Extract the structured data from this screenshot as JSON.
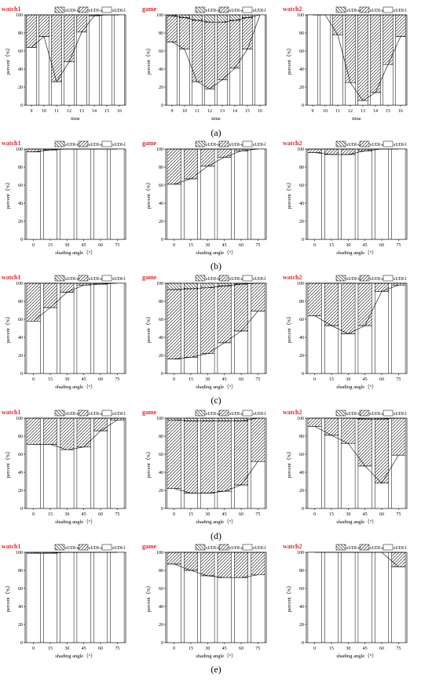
{
  "figure": {
    "row_labels": [
      "(a)",
      "(b)",
      "(c)",
      "(d)",
      "(e)"
    ],
    "legend_labels": [
      "sUDI-u",
      "sUDI-a",
      "sUDI-l"
    ],
    "ylabel": "percent（%）",
    "ylim": [
      0,
      100
    ],
    "yticks": [
      "0",
      "20",
      "40",
      "60",
      "80",
      "100"
    ],
    "title_color": "#e8262b"
  },
  "chart_data": [
    {
      "type": "bar",
      "row": 0,
      "col": 0,
      "title": "watch1",
      "xlabel": "time",
      "categories": [
        "9",
        "10",
        "11",
        "12",
        "13",
        "14",
        "15",
        "16"
      ],
      "series": [
        {
          "name": "sUDI-u",
          "values": [
            0,
            0,
            0,
            0,
            0,
            0,
            0,
            0
          ]
        },
        {
          "name": "sUDI-a",
          "values": [
            36,
            24,
            74,
            52,
            19,
            1,
            0,
            0
          ]
        },
        {
          "name": "sUDI-l",
          "values": [
            64,
            76,
            26,
            48,
            81,
            99,
            100,
            100
          ]
        }
      ]
    },
    {
      "type": "bar",
      "row": 0,
      "col": 1,
      "title": "game",
      "xlabel": "time",
      "categories": [
        "9",
        "10",
        "11",
        "12",
        "13",
        "14",
        "15",
        "16"
      ],
      "series": [
        {
          "name": "sUDI-u",
          "values": [
            1,
            3,
            6,
            8,
            8,
            6,
            3,
            0
          ]
        },
        {
          "name": "sUDI-a",
          "values": [
            29,
            35,
            68,
            74,
            64,
            53,
            35,
            0
          ]
        },
        {
          "name": "sUDI-l",
          "values": [
            70,
            62,
            26,
            18,
            28,
            41,
            62,
            100
          ]
        }
      ]
    },
    {
      "type": "bar",
      "row": 0,
      "col": 2,
      "title": "watch2",
      "xlabel": "time",
      "categories": [
        "9",
        "10",
        "11",
        "12",
        "13",
        "14",
        "15",
        "16"
      ],
      "series": [
        {
          "name": "sUDI-u",
          "values": [
            0,
            0,
            0,
            0,
            0,
            0,
            0,
            0
          ]
        },
        {
          "name": "sUDI-a",
          "values": [
            0,
            0,
            22,
            75,
            95,
            86,
            55,
            24
          ]
        },
        {
          "name": "sUDI-l",
          "values": [
            100,
            100,
            78,
            25,
            5,
            14,
            45,
            76
          ]
        }
      ]
    },
    {
      "type": "bar",
      "row": 1,
      "col": 0,
      "title": "watch1",
      "xlabel": "shading angle（°）",
      "categories": [
        "0",
        "15",
        "30",
        "45",
        "60",
        "75"
      ],
      "series": [
        {
          "name": "sUDI-u",
          "values": [
            0,
            0,
            0,
            0,
            0,
            0
          ]
        },
        {
          "name": "sUDI-a",
          "values": [
            3,
            1,
            0,
            0,
            0,
            0
          ]
        },
        {
          "name": "sUDI-l",
          "values": [
            97,
            99,
            100,
            100,
            100,
            100
          ]
        }
      ]
    },
    {
      "type": "bar",
      "row": 1,
      "col": 1,
      "title": "game",
      "xlabel": "shading angle（°）",
      "categories": [
        "0",
        "15",
        "30",
        "45",
        "60",
        "75"
      ],
      "series": [
        {
          "name": "sUDI-u",
          "values": [
            0,
            0,
            0,
            0,
            0,
            0
          ]
        },
        {
          "name": "sUDI-a",
          "values": [
            39,
            33,
            19,
            9,
            2,
            0
          ]
        },
        {
          "name": "sUDI-l",
          "values": [
            61,
            67,
            81,
            91,
            98,
            100
          ]
        }
      ]
    },
    {
      "type": "bar",
      "row": 1,
      "col": 2,
      "title": "watch2",
      "xlabel": "shading angle（°）",
      "categories": [
        "0",
        "15",
        "30",
        "45",
        "60",
        "75"
      ],
      "series": [
        {
          "name": "sUDI-u",
          "values": [
            0,
            0,
            0,
            0,
            0,
            0
          ]
        },
        {
          "name": "sUDI-a",
          "values": [
            4,
            6,
            6,
            2,
            0,
            0
          ]
        },
        {
          "name": "sUDI-l",
          "values": [
            96,
            94,
            94,
            98,
            100,
            100
          ]
        }
      ]
    },
    {
      "type": "bar",
      "row": 2,
      "col": 0,
      "title": "watch1",
      "xlabel": "shading angle（°）",
      "categories": [
        "0",
        "15",
        "30",
        "45",
        "60",
        "75"
      ],
      "series": [
        {
          "name": "sUDI-u",
          "values": [
            0,
            0,
            0,
            0,
            0,
            0
          ]
        },
        {
          "name": "sUDI-a",
          "values": [
            42,
            27,
            10,
            2,
            1,
            0
          ]
        },
        {
          "name": "sUDI-l",
          "values": [
            58,
            73,
            90,
            98,
            99,
            100
          ]
        }
      ]
    },
    {
      "type": "bar",
      "row": 2,
      "col": 1,
      "title": "game",
      "xlabel": "shading angle（°）",
      "categories": [
        "0",
        "15",
        "30",
        "45",
        "60",
        "75"
      ],
      "series": [
        {
          "name": "sUDI-u",
          "values": [
            7,
            6,
            5,
            3,
            1,
            0
          ]
        },
        {
          "name": "sUDI-a",
          "values": [
            77,
            76,
            73,
            63,
            52,
            31
          ]
        },
        {
          "name": "sUDI-l",
          "values": [
            16,
            18,
            22,
            34,
            47,
            69
          ]
        }
      ]
    },
    {
      "type": "bar",
      "row": 2,
      "col": 2,
      "title": "watch2",
      "xlabel": "shading angle（°）",
      "categories": [
        "0",
        "15",
        "30",
        "45",
        "60",
        "75"
      ],
      "series": [
        {
          "name": "sUDI-u",
          "values": [
            0,
            0,
            0,
            0,
            0,
            0
          ]
        },
        {
          "name": "sUDI-a",
          "values": [
            36,
            47,
            56,
            47,
            9,
            2
          ]
        },
        {
          "name": "sUDI-l",
          "values": [
            64,
            53,
            44,
            53,
            91,
            98
          ]
        }
      ]
    },
    {
      "type": "bar",
      "row": 3,
      "col": 0,
      "title": "watch1",
      "xlabel": "shading angle（°）",
      "categories": [
        "0",
        "15",
        "30",
        "45",
        "60",
        "75"
      ],
      "series": [
        {
          "name": "sUDI-u",
          "values": [
            0,
            0,
            0,
            0,
            0,
            0
          ]
        },
        {
          "name": "sUDI-a",
          "values": [
            29,
            29,
            35,
            32,
            14,
            2
          ]
        },
        {
          "name": "sUDI-l",
          "values": [
            71,
            71,
            65,
            68,
            86,
            98
          ]
        }
      ]
    },
    {
      "type": "bar",
      "row": 3,
      "col": 1,
      "title": "game",
      "xlabel": "shading angle（°）",
      "categories": [
        "0",
        "15",
        "30",
        "45",
        "60",
        "75"
      ],
      "series": [
        {
          "name": "sUDI-u",
          "values": [
            2,
            3,
            3,
            3,
            3,
            0
          ]
        },
        {
          "name": "sUDI-a",
          "values": [
            76,
            80,
            80,
            78,
            71,
            48
          ]
        },
        {
          "name": "sUDI-l",
          "values": [
            22,
            17,
            17,
            19,
            26,
            52
          ]
        }
      ]
    },
    {
      "type": "bar",
      "row": 3,
      "col": 2,
      "title": "watch2",
      "xlabel": "shading angle（°）",
      "categories": [
        "0",
        "15",
        "30",
        "45",
        "60",
        "75"
      ],
      "series": [
        {
          "name": "sUDI-u",
          "values": [
            0,
            0,
            0,
            1,
            1,
            0
          ]
        },
        {
          "name": "sUDI-a",
          "values": [
            9,
            19,
            28,
            52,
            71,
            41
          ]
        },
        {
          "name": "sUDI-l",
          "values": [
            91,
            81,
            72,
            47,
            28,
            59
          ]
        }
      ]
    },
    {
      "type": "bar",
      "row": 4,
      "col": 0,
      "title": "watch1",
      "xlabel": "shading angle（°）",
      "categories": [
        "0",
        "15",
        "30",
        "45",
        "60",
        "75"
      ],
      "series": [
        {
          "name": "sUDI-u",
          "values": [
            0,
            0,
            0,
            0,
            0,
            0
          ]
        },
        {
          "name": "sUDI-a",
          "values": [
            1,
            1,
            0,
            0,
            0,
            0
          ]
        },
        {
          "name": "sUDI-l",
          "values": [
            99,
            99,
            100,
            100,
            100,
            100
          ]
        }
      ]
    },
    {
      "type": "bar",
      "row": 4,
      "col": 1,
      "title": "game",
      "xlabel": "shading angle（°）",
      "categories": [
        "0",
        "15",
        "30",
        "45",
        "60",
        "75"
      ],
      "series": [
        {
          "name": "sUDI-u",
          "values": [
            0,
            0,
            0,
            0,
            0,
            0
          ]
        },
        {
          "name": "sUDI-a",
          "values": [
            13,
            20,
            26,
            28,
            28,
            25
          ]
        },
        {
          "name": "sUDI-l",
          "values": [
            87,
            80,
            74,
            72,
            72,
            75
          ]
        }
      ]
    },
    {
      "type": "bar",
      "row": 4,
      "col": 2,
      "title": "watch2",
      "xlabel": "shading angle（°）",
      "categories": [
        "0",
        "15",
        "30",
        "45",
        "60",
        "75"
      ],
      "series": [
        {
          "name": "sUDI-u",
          "values": [
            0,
            0,
            0,
            0,
            0,
            0
          ]
        },
        {
          "name": "sUDI-a",
          "values": [
            0,
            0,
            0,
            0,
            0,
            16
          ]
        },
        {
          "name": "sUDI-l",
          "values": [
            100,
            100,
            100,
            100,
            100,
            84
          ]
        }
      ]
    }
  ]
}
